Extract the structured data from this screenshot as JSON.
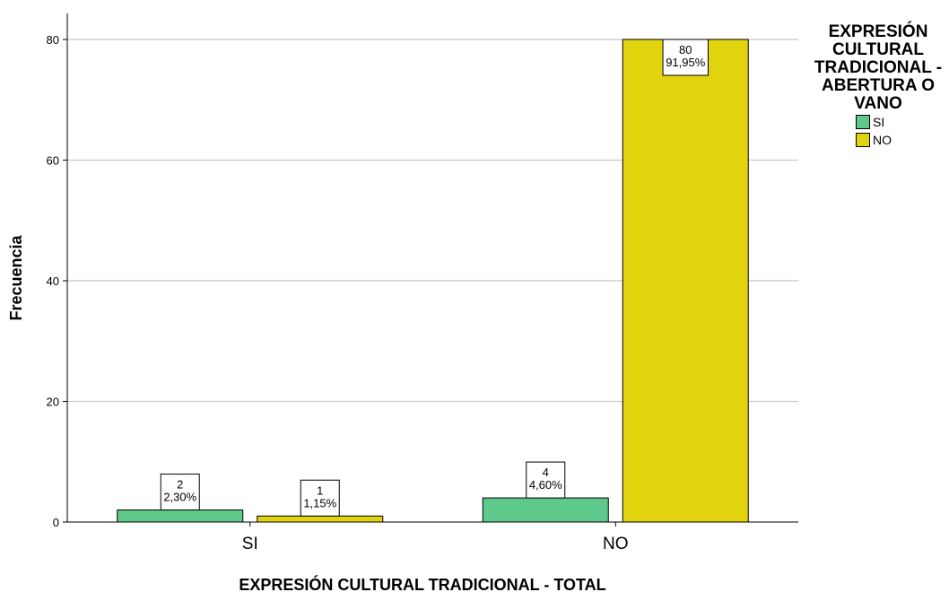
{
  "chart_data": {
    "type": "bar",
    "categories": [
      "SI",
      "NO"
    ],
    "series": [
      {
        "name": "SI",
        "values": [
          2,
          4
        ],
        "labels": [
          "2\n2,30%",
          "4\n4,60%"
        ],
        "color": "#5ec98a"
      },
      {
        "name": "NO",
        "values": [
          1,
          80
        ],
        "labels": [
          "1\n1,15%",
          "80\n91,95%"
        ],
        "color": "#e2d30f"
      }
    ],
    "xlabel": "EXPRESIÓN CULTURAL TRADICIONAL - TOTAL",
    "ylabel": "Frecuencia",
    "ylim": [
      0,
      80
    ],
    "yticks": [
      0,
      20,
      40,
      60,
      80
    ],
    "grid": true,
    "legend": {
      "title": "EXPRESIÓN CULTURAL TRADICIONAL - ABERTURA O VANO",
      "placement": "right"
    }
  }
}
